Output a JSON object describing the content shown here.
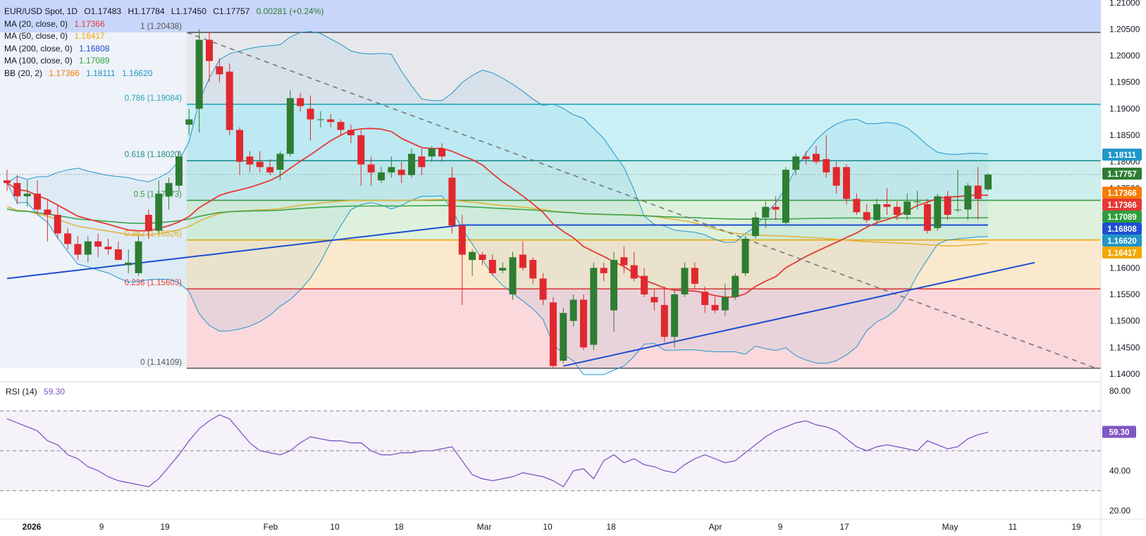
{
  "header": {
    "symbol": "EUR/USD Spot, 1D",
    "open": "O1.17483",
    "high": "H1.17784",
    "low": "L1.17450",
    "close": "C1.17757",
    "change": "0.00281 (+0.24%)"
  },
  "indicators": [
    {
      "label": "MA (20, close, 0)",
      "value": "1.17366",
      "color": "#e53935"
    },
    {
      "label": "MA (50, close, 0)",
      "value": "1.16417",
      "color": "#f2a900"
    },
    {
      "label": "MA (200, close, 0)",
      "value": "1.16808",
      "color": "#1e4fd0"
    },
    {
      "label": "MA (100, close, 0)",
      "value": "1.17089",
      "color": "#2e9e3e"
    }
  ],
  "bb": {
    "label": "BB (20, 2)",
    "basis": "1.17366",
    "upper": "1.18111",
    "lower": "1.16620",
    "color_basis": "#f57c00",
    "color_bands": "#2196c9"
  },
  "rsi": {
    "label": "RSI (14)",
    "value": "59.30",
    "ticks": [
      "80.00",
      "40.00",
      "20.00"
    ],
    "color": "#7e57c2"
  },
  "colors": {
    "up": "#2e7d32",
    "down": "#e0282e",
    "price_axis_bg": "#ffffff"
  },
  "chart_data": {
    "type": "candlestick",
    "price_ticks": [
      "1.21000",
      "1.20500",
      "1.20000",
      "1.19500",
      "1.19000",
      "1.18500",
      "1.18000",
      "1.17500",
      "1.17000",
      "1.16500",
      "1.16000",
      "1.15500",
      "1.15000",
      "1.14500",
      "1.14000"
    ],
    "date_ticks": [
      "2026",
      "9",
      "19",
      "Feb",
      "10",
      "18",
      "Mar",
      "10",
      "18",
      "Apr",
      "9",
      "17",
      "May",
      "11",
      "19"
    ],
    "fib_levels": [
      {
        "label": "1 (1.20438)",
        "price": 1.20438,
        "color": "#555555"
      },
      {
        "label": "0.786 (1.19084)",
        "price": 1.19084,
        "color": "#26a6b8"
      },
      {
        "label": "0.618 (1.18020)",
        "price": 1.1802,
        "color": "#1e8f8a"
      },
      {
        "label": "0.5 (1.17273)",
        "price": 1.17273,
        "color": "#3c9a3c"
      },
      {
        "label": "0.382 (1.16526)",
        "price": 1.16526,
        "color": "#f2a900"
      },
      {
        "label": "0.236 (1.15603)",
        "price": 1.15603,
        "color": "#e53935"
      },
      {
        "label": "0 (1.14109)",
        "price": 1.14109,
        "color": "#555555"
      }
    ],
    "price_labels": [
      {
        "text": "1.18111",
        "bg": "#2196c9"
      },
      {
        "text": "1.17757",
        "bg": "#2e7d32"
      },
      {
        "text": "1.17366",
        "bg": "#f57c00"
      },
      {
        "text": "1.17366",
        "bg": "#e53935"
      },
      {
        "text": "1.17089",
        "bg": "#2e9e3e"
      },
      {
        "text": "1.16808",
        "bg": "#1e4fd0"
      },
      {
        "text": "1.16620",
        "bg": "#2196c9"
      },
      {
        "text": "1.16417",
        "bg": "#f2a900"
      }
    ],
    "candles": [
      {
        "o": 1.1765,
        "h": 1.1785,
        "l": 1.1745,
        "c": 1.176
      },
      {
        "o": 1.176,
        "h": 1.1775,
        "l": 1.172,
        "c": 1.1735
      },
      {
        "o": 1.1735,
        "h": 1.1765,
        "l": 1.1715,
        "c": 1.174
      },
      {
        "o": 1.174,
        "h": 1.1765,
        "l": 1.17,
        "c": 1.171
      },
      {
        "o": 1.171,
        "h": 1.173,
        "l": 1.165,
        "c": 1.17
      },
      {
        "o": 1.17,
        "h": 1.172,
        "l": 1.1655,
        "c": 1.1665
      },
      {
        "o": 1.1665,
        "h": 1.1675,
        "l": 1.1635,
        "c": 1.1645
      },
      {
        "o": 1.1645,
        "h": 1.166,
        "l": 1.1615,
        "c": 1.1625
      },
      {
        "o": 1.1625,
        "h": 1.166,
        "l": 1.161,
        "c": 1.165
      },
      {
        "o": 1.165,
        "h": 1.1665,
        "l": 1.162,
        "c": 1.164
      },
      {
        "o": 1.164,
        "h": 1.1655,
        "l": 1.1625,
        "c": 1.1635
      },
      {
        "o": 1.1635,
        "h": 1.165,
        "l": 1.1615,
        "c": 1.1615
      },
      {
        "o": 1.1605,
        "h": 1.1635,
        "l": 1.159,
        "c": 1.161
      },
      {
        "o": 1.159,
        "h": 1.166,
        "l": 1.1585,
        "c": 1.165
      },
      {
        "o": 1.17,
        "h": 1.171,
        "l": 1.1655,
        "c": 1.167
      },
      {
        "o": 1.167,
        "h": 1.1765,
        "l": 1.1665,
        "c": 1.174
      },
      {
        "o": 1.1735,
        "h": 1.177,
        "l": 1.171,
        "c": 1.176
      },
      {
        "o": 1.1755,
        "h": 1.182,
        "l": 1.1745,
        "c": 1.181
      },
      {
        "o": 1.187,
        "h": 1.19,
        "l": 1.185,
        "c": 1.188
      },
      {
        "o": 1.19,
        "h": 1.205,
        "l": 1.1855,
        "c": 1.203
      },
      {
        "o": 1.203,
        "h": 1.2045,
        "l": 1.195,
        "c": 1.199
      },
      {
        "o": 1.198,
        "h": 1.1995,
        "l": 1.195,
        "c": 1.1965
      },
      {
        "o": 1.197,
        "h": 1.1985,
        "l": 1.185,
        "c": 1.186
      },
      {
        "o": 1.186,
        "h": 1.1865,
        "l": 1.1775,
        "c": 1.18
      },
      {
        "o": 1.181,
        "h": 1.182,
        "l": 1.178,
        "c": 1.1795
      },
      {
        "o": 1.18,
        "h": 1.182,
        "l": 1.178,
        "c": 1.179
      },
      {
        "o": 1.179,
        "h": 1.1805,
        "l": 1.1775,
        "c": 1.178
      },
      {
        "o": 1.1785,
        "h": 1.182,
        "l": 1.1765,
        "c": 1.1815
      },
      {
        "o": 1.1815,
        "h": 1.1935,
        "l": 1.181,
        "c": 1.192
      },
      {
        "o": 1.192,
        "h": 1.193,
        "l": 1.1895,
        "c": 1.1905
      },
      {
        "o": 1.19,
        "h": 1.1925,
        "l": 1.184,
        "c": 1.188
      },
      {
        "o": 1.188,
        "h": 1.1895,
        "l": 1.1865,
        "c": 1.188
      },
      {
        "o": 1.188,
        "h": 1.189,
        "l": 1.1865,
        "c": 1.1875
      },
      {
        "o": 1.1875,
        "h": 1.188,
        "l": 1.185,
        "c": 1.186
      },
      {
        "o": 1.186,
        "h": 1.187,
        "l": 1.1835,
        "c": 1.185
      },
      {
        "o": 1.185,
        "h": 1.186,
        "l": 1.1755,
        "c": 1.1795
      },
      {
        "o": 1.1795,
        "h": 1.181,
        "l": 1.1755,
        "c": 1.178
      },
      {
        "o": 1.1765,
        "h": 1.179,
        "l": 1.176,
        "c": 1.178
      },
      {
        "o": 1.178,
        "h": 1.181,
        "l": 1.177,
        "c": 1.179
      },
      {
        "o": 1.1785,
        "h": 1.18,
        "l": 1.176,
        "c": 1.1775
      },
      {
        "o": 1.1775,
        "h": 1.1825,
        "l": 1.177,
        "c": 1.1815
      },
      {
        "o": 1.181,
        "h": 1.1825,
        "l": 1.1775,
        "c": 1.179
      },
      {
        "o": 1.181,
        "h": 1.183,
        "l": 1.18,
        "c": 1.1825
      },
      {
        "o": 1.1825,
        "h": 1.1835,
        "l": 1.18,
        "c": 1.181
      },
      {
        "o": 1.177,
        "h": 1.179,
        "l": 1.1665,
        "c": 1.168
      },
      {
        "o": 1.168,
        "h": 1.17,
        "l": 1.153,
        "c": 1.1625
      },
      {
        "o": 1.1615,
        "h": 1.1635,
        "l": 1.1585,
        "c": 1.163
      },
      {
        "o": 1.1625,
        "h": 1.163,
        "l": 1.1605,
        "c": 1.1615
      },
      {
        "o": 1.1615,
        "h": 1.1625,
        "l": 1.1585,
        "c": 1.159
      },
      {
        "o": 1.1595,
        "h": 1.161,
        "l": 1.159,
        "c": 1.16
      },
      {
        "o": 1.155,
        "h": 1.163,
        "l": 1.154,
        "c": 1.162
      },
      {
        "o": 1.1625,
        "h": 1.165,
        "l": 1.1595,
        "c": 1.16
      },
      {
        "o": 1.1615,
        "h": 1.162,
        "l": 1.157,
        "c": 1.158
      },
      {
        "o": 1.158,
        "h": 1.159,
        "l": 1.153,
        "c": 1.154
      },
      {
        "o": 1.1535,
        "h": 1.1545,
        "l": 1.141,
        "c": 1.1415
      },
      {
        "o": 1.1425,
        "h": 1.1525,
        "l": 1.142,
        "c": 1.1515
      },
      {
        "o": 1.15,
        "h": 1.155,
        "l": 1.149,
        "c": 1.154
      },
      {
        "o": 1.154,
        "h": 1.155,
        "l": 1.1445,
        "c": 1.145
      },
      {
        "o": 1.1455,
        "h": 1.161,
        "l": 1.1445,
        "c": 1.16
      },
      {
        "o": 1.16,
        "h": 1.161,
        "l": 1.1575,
        "c": 1.159
      },
      {
        "o": 1.152,
        "h": 1.163,
        "l": 1.148,
        "c": 1.1615
      },
      {
        "o": 1.162,
        "h": 1.164,
        "l": 1.159,
        "c": 1.1605
      },
      {
        "o": 1.1605,
        "h": 1.163,
        "l": 1.1575,
        "c": 1.158
      },
      {
        "o": 1.1585,
        "h": 1.16,
        "l": 1.1545,
        "c": 1.155
      },
      {
        "o": 1.1545,
        "h": 1.156,
        "l": 1.152,
        "c": 1.1535
      },
      {
        "o": 1.153,
        "h": 1.1565,
        "l": 1.146,
        "c": 1.147
      },
      {
        "o": 1.147,
        "h": 1.156,
        "l": 1.145,
        "c": 1.155
      },
      {
        "o": 1.155,
        "h": 1.161,
        "l": 1.1545,
        "c": 1.16
      },
      {
        "o": 1.16,
        "h": 1.161,
        "l": 1.156,
        "c": 1.157
      },
      {
        "o": 1.1555,
        "h": 1.1565,
        "l": 1.1515,
        "c": 1.153
      },
      {
        "o": 1.153,
        "h": 1.1545,
        "l": 1.1515,
        "c": 1.152
      },
      {
        "o": 1.152,
        "h": 1.157,
        "l": 1.151,
        "c": 1.1545
      },
      {
        "o": 1.1545,
        "h": 1.159,
        "l": 1.154,
        "c": 1.1585
      },
      {
        "o": 1.159,
        "h": 1.166,
        "l": 1.1585,
        "c": 1.1655
      },
      {
        "o": 1.166,
        "h": 1.1705,
        "l": 1.1655,
        "c": 1.1695
      },
      {
        "o": 1.1695,
        "h": 1.1725,
        "l": 1.1675,
        "c": 1.1715
      },
      {
        "o": 1.1715,
        "h": 1.1735,
        "l": 1.169,
        "c": 1.171
      },
      {
        "o": 1.1685,
        "h": 1.179,
        "l": 1.168,
        "c": 1.1785
      },
      {
        "o": 1.1785,
        "h": 1.1815,
        "l": 1.1775,
        "c": 1.181
      },
      {
        "o": 1.181,
        "h": 1.182,
        "l": 1.1795,
        "c": 1.1805
      },
      {
        "o": 1.1815,
        "h": 1.183,
        "l": 1.1795,
        "c": 1.18
      },
      {
        "o": 1.1805,
        "h": 1.185,
        "l": 1.177,
        "c": 1.178
      },
      {
        "o": 1.179,
        "h": 1.18,
        "l": 1.174,
        "c": 1.1755
      },
      {
        "o": 1.179,
        "h": 1.1795,
        "l": 1.172,
        "c": 1.173
      },
      {
        "o": 1.173,
        "h": 1.174,
        "l": 1.17,
        "c": 1.1705
      },
      {
        "o": 1.1705,
        "h": 1.172,
        "l": 1.1685,
        "c": 1.169
      },
      {
        "o": 1.169,
        "h": 1.173,
        "l": 1.168,
        "c": 1.172
      },
      {
        "o": 1.172,
        "h": 1.175,
        "l": 1.17,
        "c": 1.1715
      },
      {
        "o": 1.1715,
        "h": 1.1725,
        "l": 1.169,
        "c": 1.17
      },
      {
        "o": 1.17,
        "h": 1.174,
        "l": 1.169,
        "c": 1.1725
      },
      {
        "o": 1.1725,
        "h": 1.1745,
        "l": 1.171,
        "c": 1.1725
      },
      {
        "o": 1.172,
        "h": 1.173,
        "l": 1.1665,
        "c": 1.167
      },
      {
        "o": 1.1675,
        "h": 1.174,
        "l": 1.167,
        "c": 1.1735
      },
      {
        "o": 1.1735,
        "h": 1.1745,
        "l": 1.169,
        "c": 1.17
      },
      {
        "o": 1.171,
        "h": 1.1785,
        "l": 1.1705,
        "c": 1.171
      },
      {
        "o": 1.171,
        "h": 1.176,
        "l": 1.169,
        "c": 1.1755
      },
      {
        "o": 1.1755,
        "h": 1.179,
        "l": 1.169,
        "c": 1.173
      },
      {
        "o": 1.1748,
        "h": 1.1778,
        "l": 1.1745,
        "c": 1.1776
      }
    ],
    "rsi_values": [
      66,
      64,
      62,
      60,
      55,
      53,
      48,
      46,
      42,
      40,
      37,
      35,
      34,
      33,
      32,
      36,
      42,
      48,
      55,
      61,
      65,
      68,
      66,
      60,
      54,
      50,
      49,
      48,
      50,
      54,
      57,
      56,
      55,
      55,
      54,
      54,
      50,
      48,
      48,
      49,
      49,
      50,
      50,
      51,
      52,
      45,
      38,
      36,
      35,
      36,
      37,
      39,
      38,
      37,
      35,
      32,
      40,
      41,
      36,
      45,
      48,
      44,
      46,
      43,
      42,
      40,
      39,
      43,
      46,
      48,
      46,
      44,
      45,
      49,
      53,
      57,
      60,
      62,
      64,
      65,
      63,
      62,
      60,
      56,
      52,
      50,
      52,
      53,
      52,
      51,
      50,
      55,
      53,
      51,
      52,
      56,
      58,
      59.3
    ],
    "rsi_ylim": [
      20,
      80
    ]
  }
}
